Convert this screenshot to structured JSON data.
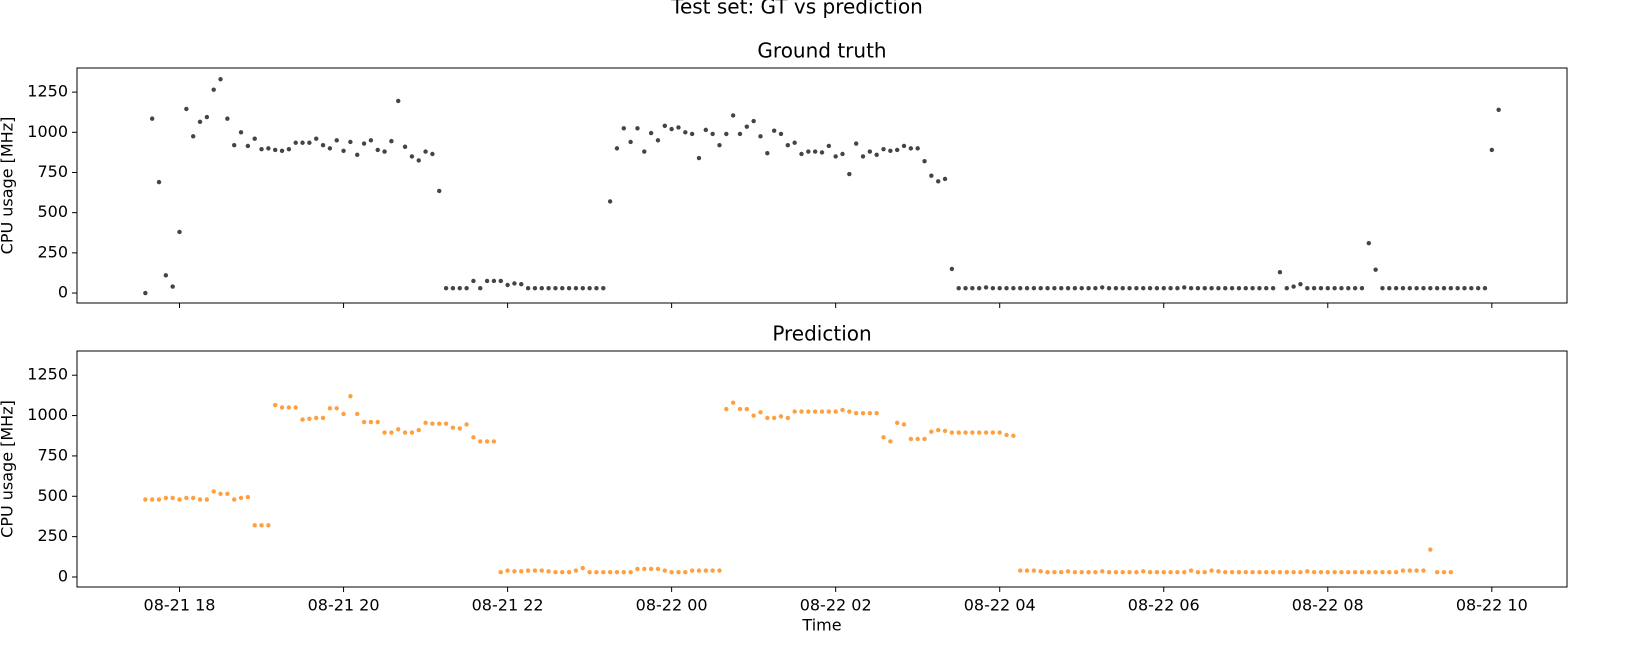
{
  "chart_data": {
    "type": "scatter",
    "title": "Test set: GT vs prediction",
    "xlabel": "Time",
    "xlim": [
      "08-21 16:45",
      "08-22 10:55"
    ],
    "xticks": [
      "08-21 18",
      "08-21 20",
      "08-21 22",
      "08-22 00",
      "08-22 02",
      "08-22 04",
      "08-22 06",
      "08-22 08",
      "08-22 10"
    ],
    "x": [
      "08-21 17:35",
      "08-21 17:40",
      "08-21 17:45",
      "08-21 17:50",
      "08-21 17:55",
      "08-21 18:00",
      "08-21 18:05",
      "08-21 18:10",
      "08-21 18:15",
      "08-21 18:20",
      "08-21 18:25",
      "08-21 18:30",
      "08-21 18:35",
      "08-21 18:40",
      "08-21 18:45",
      "08-21 18:50",
      "08-21 18:55",
      "08-21 19:00",
      "08-21 19:05",
      "08-21 19:10",
      "08-21 19:15",
      "08-21 19:20",
      "08-21 19:25",
      "08-21 19:30",
      "08-21 19:35",
      "08-21 19:40",
      "08-21 19:45",
      "08-21 19:50",
      "08-21 19:55",
      "08-21 20:00",
      "08-21 20:05",
      "08-21 20:10",
      "08-21 20:15",
      "08-21 20:20",
      "08-21 20:25",
      "08-21 20:30",
      "08-21 20:35",
      "08-21 20:40",
      "08-21 20:45",
      "08-21 20:50",
      "08-21 20:55",
      "08-21 21:00",
      "08-21 21:05",
      "08-21 21:10",
      "08-21 21:15",
      "08-21 21:20",
      "08-21 21:25",
      "08-21 21:30",
      "08-21 21:35",
      "08-21 21:40",
      "08-21 21:45",
      "08-21 21:50",
      "08-21 21:55",
      "08-21 22:00",
      "08-21 22:05",
      "08-21 22:10",
      "08-21 22:15",
      "08-21 22:20",
      "08-21 22:25",
      "08-21 22:30",
      "08-21 22:35",
      "08-21 22:40",
      "08-21 22:45",
      "08-21 22:50",
      "08-21 22:55",
      "08-21 23:00",
      "08-21 23:05",
      "08-21 23:10",
      "08-21 23:15",
      "08-21 23:20",
      "08-21 23:25",
      "08-21 23:30",
      "08-21 23:35",
      "08-21 23:40",
      "08-21 23:45",
      "08-21 23:50",
      "08-21 23:55",
      "08-22 00:00",
      "08-22 00:05",
      "08-22 00:10",
      "08-22 00:15",
      "08-22 00:20",
      "08-22 00:25",
      "08-22 00:30",
      "08-22 00:35",
      "08-22 00:40",
      "08-22 00:45",
      "08-22 00:50",
      "08-22 00:55",
      "08-22 01:00",
      "08-22 01:05",
      "08-22 01:10",
      "08-22 01:15",
      "08-22 01:20",
      "08-22 01:25",
      "08-22 01:30",
      "08-22 01:35",
      "08-22 01:40",
      "08-22 01:45",
      "08-22 01:50",
      "08-22 01:55",
      "08-22 02:00",
      "08-22 02:05",
      "08-22 02:10",
      "08-22 02:15",
      "08-22 02:20",
      "08-22 02:25",
      "08-22 02:30",
      "08-22 02:35",
      "08-22 02:40",
      "08-22 02:45",
      "08-22 02:50",
      "08-22 02:55",
      "08-22 03:00",
      "08-22 03:05",
      "08-22 03:10",
      "08-22 03:15",
      "08-22 03:20",
      "08-22 03:25",
      "08-22 03:30",
      "08-22 03:35",
      "08-22 03:40",
      "08-22 03:45",
      "08-22 03:50",
      "08-22 03:55",
      "08-22 04:00",
      "08-22 04:05",
      "08-22 04:10",
      "08-22 04:15",
      "08-22 04:20",
      "08-22 04:25",
      "08-22 04:30",
      "08-22 04:35",
      "08-22 04:40",
      "08-22 04:45",
      "08-22 04:50",
      "08-22 04:55",
      "08-22 05:00",
      "08-22 05:05",
      "08-22 05:10",
      "08-22 05:15",
      "08-22 05:20",
      "08-22 05:25",
      "08-22 05:30",
      "08-22 05:35",
      "08-22 05:40",
      "08-22 05:45",
      "08-22 05:50",
      "08-22 05:55",
      "08-22 06:00",
      "08-22 06:05",
      "08-22 06:10",
      "08-22 06:15",
      "08-22 06:20",
      "08-22 06:25",
      "08-22 06:30",
      "08-22 06:35",
      "08-22 06:40",
      "08-22 06:45",
      "08-22 06:50",
      "08-22 06:55",
      "08-22 07:00",
      "08-22 07:05",
      "08-22 07:10",
      "08-22 07:15",
      "08-22 07:20",
      "08-22 07:25",
      "08-22 07:30",
      "08-22 07:35",
      "08-22 07:40",
      "08-22 07:45",
      "08-22 07:50",
      "08-22 07:55",
      "08-22 08:00",
      "08-22 08:05",
      "08-22 08:10",
      "08-22 08:15",
      "08-22 08:20",
      "08-22 08:25",
      "08-22 08:30",
      "08-22 08:35",
      "08-22 08:40",
      "08-22 08:45",
      "08-22 08:50",
      "08-22 08:55",
      "08-22 09:00",
      "08-22 09:05",
      "08-22 09:10",
      "08-22 09:15",
      "08-22 09:20",
      "08-22 09:25",
      "08-22 09:30",
      "08-22 09:35",
      "08-22 09:40",
      "08-22 09:45",
      "08-22 09:50",
      "08-22 09:55",
      "08-22 10:00",
      "08-22 10:05"
    ],
    "panels": [
      {
        "title": "Ground truth",
        "ylabel": "CPU usage [MHz]",
        "ylim": [
          -62,
          1400
        ],
        "yticks": [
          0,
          250,
          500,
          750,
          1000,
          1250
        ],
        "color": "#444444",
        "values": [
          0,
          1085,
          690,
          110,
          40,
          380,
          1145,
          975,
          1065,
          1095,
          1265,
          1330,
          1085,
          920,
          1000,
          915,
          960,
          895,
          900,
          890,
          885,
          895,
          935,
          935,
          935,
          960,
          920,
          900,
          950,
          885,
          940,
          860,
          930,
          950,
          890,
          880,
          945,
          1195,
          910,
          850,
          825,
          880,
          865,
          635,
          30,
          30,
          30,
          30,
          75,
          30,
          75,
          75,
          75,
          50,
          60,
          55,
          30,
          30,
          30,
          30,
          30,
          30,
          30,
          30,
          30,
          30,
          30,
          30,
          570,
          900,
          1025,
          940,
          1025,
          880,
          995,
          950,
          1040,
          1020,
          1030,
          1000,
          990,
          840,
          1015,
          990,
          920,
          990,
          1105,
          990,
          1035,
          1070,
          975,
          870,
          1010,
          990,
          920,
          935,
          865,
          880,
          880,
          875,
          915,
          850,
          865,
          740,
          930,
          850,
          880,
          860,
          895,
          885,
          890,
          915,
          900,
          900,
          820,
          730,
          695,
          710,
          150,
          30,
          30,
          30,
          30,
          35,
          30,
          30,
          30,
          30,
          30,
          30,
          30,
          30,
          30,
          30,
          30,
          30,
          30,
          30,
          30,
          30,
          35,
          30,
          30,
          30,
          30,
          30,
          30,
          30,
          30,
          30,
          30,
          30,
          35,
          30,
          30,
          30,
          30,
          30,
          30,
          30,
          30,
          30,
          30,
          30,
          30,
          30,
          130,
          30,
          40,
          55,
          30,
          30,
          30,
          30,
          30,
          30,
          30,
          30,
          30,
          310,
          145,
          30,
          30,
          30,
          30,
          30,
          30,
          30,
          30,
          30,
          30,
          30,
          30,
          30,
          30,
          30,
          30,
          890,
          1140
        ]
      },
      {
        "title": "Prediction",
        "ylabel": "CPU usage [MHz]",
        "ylim": [
          -62,
          1400
        ],
        "yticks": [
          0,
          250,
          500,
          750,
          1000,
          1250
        ],
        "color": "#ffa040",
        "values": [
          480,
          480,
          480,
          490,
          490,
          480,
          490,
          490,
          480,
          480,
          530,
          515,
          515,
          480,
          490,
          495,
          320,
          320,
          320,
          1065,
          1050,
          1050,
          1050,
          975,
          980,
          985,
          985,
          1045,
          1045,
          1010,
          1120,
          1010,
          960,
          960,
          960,
          895,
          895,
          915,
          895,
          895,
          910,
          955,
          950,
          950,
          950,
          925,
          920,
          945,
          865,
          840,
          840,
          840,
          30,
          40,
          35,
          35,
          40,
          40,
          40,
          35,
          30,
          30,
          30,
          40,
          55,
          30,
          30,
          30,
          30,
          30,
          30,
          30,
          50,
          50,
          50,
          50,
          40,
          30,
          30,
          30,
          40,
          40,
          40,
          40,
          40,
          1040,
          1080,
          1040,
          1040,
          1000,
          1020,
          985,
          985,
          995,
          985,
          1025,
          1025,
          1025,
          1025,
          1025,
          1025,
          1025,
          1035,
          1025,
          1015,
          1015,
          1015,
          1015,
          865,
          840,
          955,
          945,
          855,
          855,
          855,
          900,
          910,
          905,
          895,
          895,
          895,
          895,
          895,
          895,
          895,
          895,
          880,
          875,
          40,
          40,
          40,
          35,
          30,
          30,
          30,
          35,
          30,
          30,
          30,
          30,
          35,
          30,
          30,
          30,
          30,
          30,
          35,
          30,
          30,
          30,
          30,
          30,
          30,
          40,
          30,
          30,
          40,
          35,
          30,
          30,
          30,
          30,
          30,
          30,
          30,
          30,
          30,
          30,
          30,
          30,
          35,
          30,
          30,
          30,
          30,
          30,
          30,
          30,
          30,
          30,
          30,
          30,
          30,
          30,
          40,
          40,
          40,
          40,
          170,
          30,
          30,
          30,
          null,
          null,
          null,
          null,
          null,
          null,
          null
        ]
      }
    ]
  }
}
